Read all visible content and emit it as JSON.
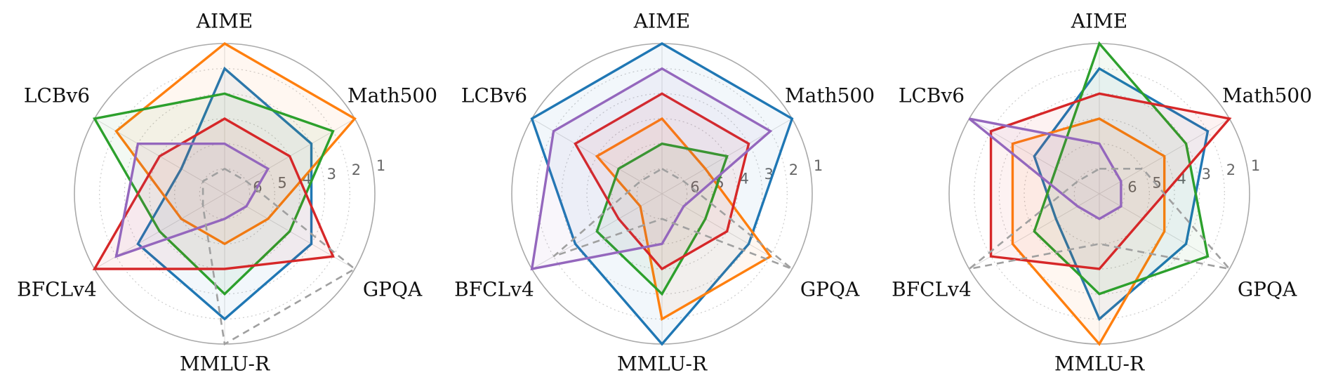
{
  "chart_data": [
    {
      "type": "radar",
      "categories": [
        "AIME",
        "Math500",
        "GPQA",
        "MMLU-R",
        "BFCLv4",
        "LCBv6"
      ],
      "rlim": [
        7,
        1
      ],
      "rticks": [
        1,
        2,
        3,
        4,
        5,
        6
      ],
      "grid": true,
      "series": [
        {
          "color": "#1f77b4",
          "values": [
            2,
            3,
            3,
            2,
            3,
            5
          ]
        },
        {
          "color": "#ff7f0e",
          "values": [
            1,
            1,
            5,
            5,
            5,
            2
          ]
        },
        {
          "color": "#2ca02c",
          "values": [
            3,
            2,
            4,
            3,
            4,
            1
          ]
        },
        {
          "color": "#d62728",
          "values": [
            4,
            4,
            2,
            4,
            1,
            4
          ]
        },
        {
          "color": "#9467bd",
          "values": [
            5,
            5,
            6,
            6,
            2,
            3
          ]
        },
        {
          "color": "#a0a0a0",
          "linestyle": "dashed",
          "values": [
            6,
            6,
            1,
            1,
            6,
            6
          ]
        }
      ]
    },
    {
      "type": "radar",
      "categories": [
        "AIME",
        "Math500",
        "GPQA",
        "MMLU-R",
        "BFCLv4",
        "LCBv6"
      ],
      "rlim": [
        7,
        1
      ],
      "rticks": [
        1,
        2,
        3,
        4,
        5,
        6
      ],
      "grid": true,
      "series": [
        {
          "color": "#1f77b4",
          "values": [
            1,
            1,
            3,
            1,
            3,
            1
          ]
        },
        {
          "color": "#ff7f0e",
          "values": [
            4,
            5,
            2,
            2,
            6,
            4
          ]
        },
        {
          "color": "#2ca02c",
          "values": [
            5,
            4,
            5,
            3,
            4,
            5
          ]
        },
        {
          "color": "#d62728",
          "values": [
            3,
            3,
            4,
            4,
            5,
            3
          ]
        },
        {
          "color": "#9467bd",
          "values": [
            2,
            2,
            6,
            5,
            1,
            2
          ]
        },
        {
          "color": "#a0a0a0",
          "linestyle": "dashed",
          "values": [
            6,
            6,
            1,
            6,
            2,
            6
          ]
        }
      ]
    },
    {
      "type": "radar",
      "categories": [
        "AIME",
        "Math500",
        "GPQA",
        "MMLU-R",
        "BFCLv4",
        "LCBv6"
      ],
      "rlim": [
        7,
        1
      ],
      "rticks": [
        1,
        2,
        3,
        4,
        5,
        6
      ],
      "grid": true,
      "series": [
        {
          "color": "#1f77b4",
          "values": [
            2,
            2,
            3,
            2,
            5,
            4
          ]
        },
        {
          "color": "#ff7f0e",
          "values": [
            4,
            4,
            4,
            1,
            3,
            3
          ]
        },
        {
          "color": "#2ca02c",
          "values": [
            1,
            3,
            2,
            3,
            4,
            5
          ]
        },
        {
          "color": "#d62728",
          "values": [
            3,
            1,
            5,
            4,
            2,
            2
          ]
        },
        {
          "color": "#9467bd",
          "values": [
            5,
            6,
            6,
            6,
            6,
            1
          ]
        },
        {
          "color": "#a0a0a0",
          "linestyle": "dashed",
          "values": [
            6,
            5,
            1,
            5,
            1,
            6
          ]
        }
      ]
    }
  ]
}
